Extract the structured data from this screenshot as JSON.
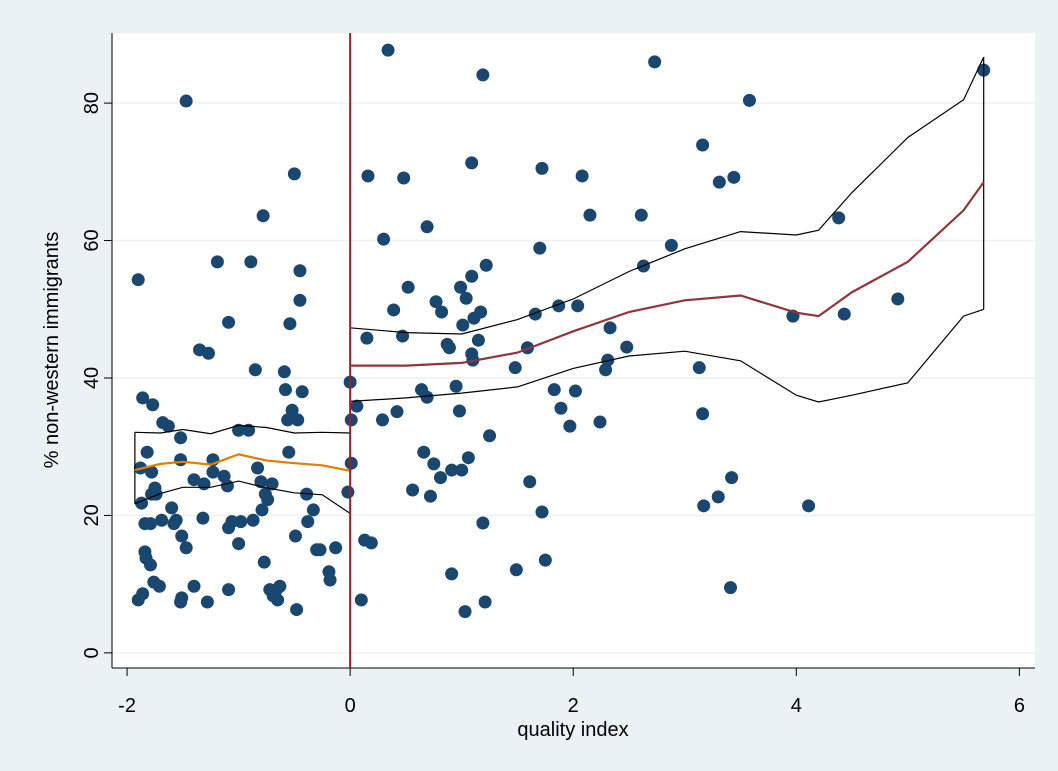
{
  "chart_data": {
    "type": "scatter",
    "xlabel": "quality index",
    "ylabel": "% non-western immigrants",
    "xlim": [
      -2.135,
      6.14
    ],
    "ylim": [
      -2.2,
      90.2
    ],
    "xticks": [
      -2,
      0,
      2,
      4,
      6
    ],
    "yticks": [
      0,
      20,
      40,
      60,
      80
    ],
    "grid": true,
    "vline": {
      "value": 0,
      "color": "#a6192e"
    },
    "series": [
      {
        "type": "scatter",
        "color": "#1a476f",
        "x": [
          -1.9,
          -1.9,
          -1.86,
          -1.82,
          -1.88,
          -1.87,
          -1.84,
          -1.84,
          -1.83,
          -1.86,
          -1.79,
          -1.79,
          -1.77,
          -1.78,
          -1.75,
          -1.74,
          -1.78,
          -1.76,
          -1.71,
          -1.69,
          -1.68,
          -1.63,
          -1.6,
          -1.58,
          -1.56,
          -1.52,
          -1.52,
          -1.51,
          -1.47,
          -1.51,
          -1.52,
          -1.47,
          -1.4,
          -1.4,
          -1.35,
          -1.32,
          -1.31,
          -1.28,
          -1.27,
          -1.23,
          -1.23,
          -1.19,
          -1.13,
          -1.1,
          -1.09,
          -1.09,
          -1.09,
          -1.06,
          -1.0,
          -1.0,
          -0.98,
          -0.91,
          -0.89,
          -0.87,
          -0.85,
          -0.83,
          -0.8,
          -0.78,
          -0.79,
          -0.77,
          -0.76,
          -0.74,
          -0.7,
          -0.72,
          -0.69,
          -0.66,
          -0.65,
          -0.63,
          -0.59,
          -0.58,
          -0.56,
          -0.55,
          -0.54,
          -0.52,
          -0.5,
          -0.49,
          -0.48,
          -0.47,
          -0.45,
          -0.45,
          -0.43,
          -0.39,
          -0.38,
          -0.33,
          -0.3,
          -0.27,
          -0.19,
          -0.18,
          -0.13,
          -0.02,
          0.0,
          0.01,
          0.01,
          0.06,
          0.1,
          0.13,
          0.16,
          0.15,
          0.19,
          0.29,
          0.3,
          0.34,
          0.39,
          0.42,
          0.47,
          0.48,
          0.52,
          0.56,
          0.64,
          0.66,
          0.69,
          0.69,
          0.72,
          0.75,
          0.77,
          0.81,
          0.82,
          0.87,
          0.89,
          0.91,
          0.91,
          0.95,
          0.98,
          0.99,
          1.0,
          1.01,
          1.03,
          1.04,
          1.06,
          1.09,
          1.09,
          1.09,
          1.1,
          1.11,
          1.15,
          1.17,
          1.19,
          1.19,
          1.21,
          1.22,
          1.25,
          1.48,
          1.49,
          1.59,
          1.61,
          1.66,
          1.7,
          1.72,
          1.72,
          1.75,
          1.83,
          1.87,
          1.89,
          1.97,
          2.02,
          2.04,
          2.08,
          2.15,
          2.24,
          2.29,
          2.31,
          2.33,
          2.48,
          2.61,
          2.63,
          2.73,
          2.88,
          3.13,
          3.16,
          3.16,
          3.17,
          3.3,
          3.31,
          3.41,
          3.42,
          3.44,
          3.58,
          3.97,
          4.11,
          4.38,
          4.43,
          4.91,
          5.68
        ],
        "values": [
          7.7,
          54.3,
          37.1,
          29.2,
          26.9,
          21.8,
          18.8,
          14.7,
          13.8,
          8.6,
          18.8,
          12.8,
          36.1,
          26.3,
          24.0,
          23.1,
          23.1,
          10.3,
          9.7,
          19.3,
          33.5,
          33.0,
          21.1,
          18.8,
          19.3,
          31.3,
          28.1,
          17.0,
          15.3,
          8.0,
          7.4,
          80.3,
          9.7,
          25.2,
          44.1,
          19.6,
          24.6,
          7.4,
          43.6,
          26.3,
          28.1,
          56.9,
          25.7,
          24.3,
          18.2,
          9.2,
          48.1,
          19.1,
          32.4,
          15.9,
          19.1,
          32.4,
          56.9,
          19.3,
          41.2,
          26.9,
          24.9,
          63.6,
          20.8,
          13.2,
          23.1,
          22.3,
          24.6,
          9.2,
          8.3,
          9.2,
          7.7,
          9.7,
          40.9,
          38.3,
          33.9,
          29.2,
          47.9,
          35.3,
          69.7,
          17.0,
          6.3,
          33.9,
          55.6,
          51.3,
          38.0,
          23.1,
          19.1,
          20.8,
          15.0,
          15.0,
          11.8,
          10.6,
          15.3,
          23.4,
          39.4,
          33.9,
          27.6,
          35.9,
          7.7,
          16.4,
          69.4,
          45.8,
          16.0,
          33.9,
          60.2,
          87.7,
          49.9,
          35.1,
          46.1,
          69.1,
          53.2,
          23.7,
          38.3,
          29.2,
          62.0,
          37.2,
          22.8,
          27.5,
          51.1,
          25.5,
          49.6,
          44.9,
          44.4,
          11.5,
          26.6,
          38.8,
          35.2,
          53.2,
          26.6,
          47.7,
          6.0,
          51.6,
          28.4,
          71.3,
          54.8,
          43.5,
          42.6,
          48.7,
          45.5,
          49.6,
          84.1,
          18.9,
          7.4,
          56.4,
          31.6,
          41.5,
          12.1,
          44.4,
          24.9,
          49.3,
          58.9,
          70.5,
          20.5,
          13.5,
          38.3,
          50.5,
          35.6,
          33.0,
          38.1,
          50.5,
          69.4,
          63.7,
          33.6,
          41.2,
          42.6,
          47.3,
          44.5,
          63.7,
          56.3,
          86.0,
          59.3,
          41.5,
          73.9,
          34.8,
          21.4,
          22.7,
          68.5,
          9.5,
          25.5,
          69.2,
          80.4,
          49.0,
          21.4,
          63.3,
          49.3,
          51.5,
          84.8
        ]
      },
      {
        "type": "band",
        "color": "#000000",
        "x": [
          -1.93,
          -1.7,
          -1.5,
          -1.25,
          -1.0,
          -0.75,
          -0.5,
          -0.25,
          0
        ],
        "upper": [
          32.1,
          32.0,
          32.5,
          31.9,
          33.1,
          32.8,
          32.0,
          32.1,
          32.0
        ],
        "lower": [
          21.7,
          23.2,
          24.1,
          24.1,
          25.0,
          24.0,
          23.3,
          23.0,
          20.3
        ]
      },
      {
        "type": "band",
        "color": "#000000",
        "x": [
          0,
          0.5,
          1,
          1.5,
          2,
          2.5,
          3,
          3.5,
          4,
          4.2,
          4.5,
          5,
          5.5,
          5.68
        ],
        "upper": [
          47.3,
          46.6,
          46.4,
          48.5,
          51.5,
          55.5,
          58.8,
          61.3,
          60.8,
          61.5,
          67,
          75,
          80.5,
          86.7
        ],
        "lower": [
          36.6,
          37.1,
          37.8,
          38.7,
          41.4,
          43.2,
          43.9,
          42.5,
          37.5,
          36.5,
          37.5,
          39.3,
          49.0,
          50.0
        ]
      },
      {
        "type": "line",
        "color": "#e37e00",
        "x": [
          -1.93,
          -1.7,
          -1.5,
          -1.25,
          -1.0,
          -0.75,
          -0.5,
          -0.25,
          0
        ],
        "values": [
          26.6,
          27.5,
          27.8,
          27.4,
          28.9,
          28.0,
          27.6,
          27.3,
          26.5
        ]
      },
      {
        "type": "line",
        "color": "#90353b",
        "x": [
          0,
          0.5,
          1,
          1.5,
          2,
          2.5,
          3,
          3.5,
          4,
          4.2,
          4.5,
          5,
          5.5,
          5.68
        ],
        "values": [
          41.8,
          41.8,
          42.2,
          43.7,
          46.8,
          49.6,
          51.3,
          52.0,
          49.5,
          49.0,
          52.5,
          56.9,
          64.4,
          68.5
        ]
      }
    ]
  }
}
